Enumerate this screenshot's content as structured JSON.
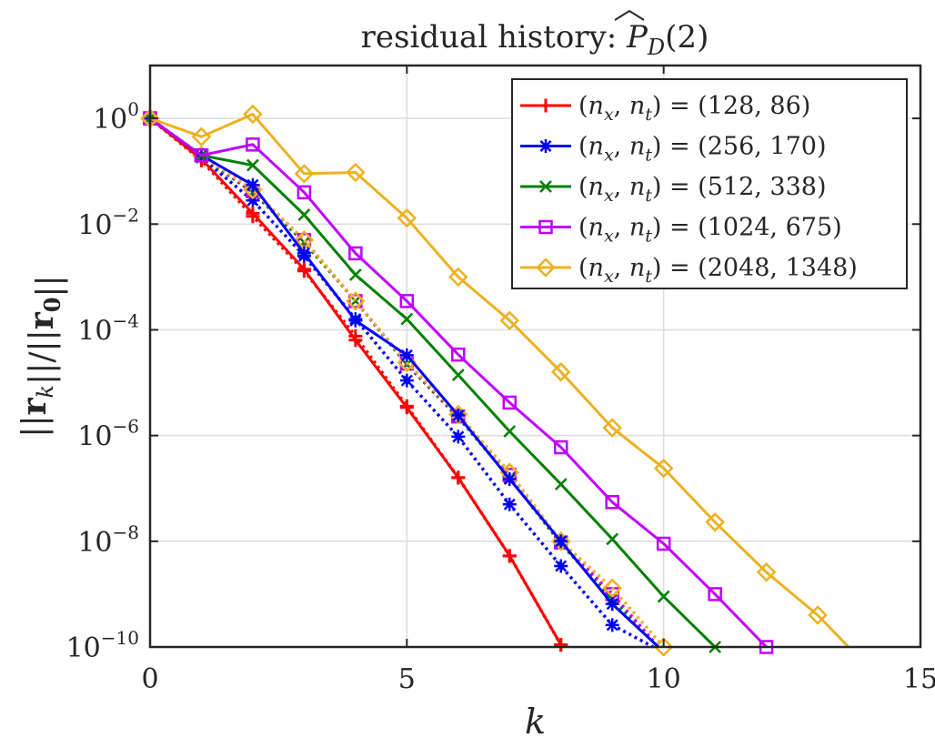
{
  "chart_data": {
    "type": "line",
    "title": "residual history: P̂_D(2)",
    "title_parts": {
      "prefix": "residual history: ",
      "symbol": "P",
      "subscript": "D",
      "suffix": "(2)"
    },
    "xlabel": "k",
    "ylabel": "||r_k|| / ||r_0||",
    "xlim": [
      0,
      15
    ],
    "ylim": [
      1e-10,
      10
    ],
    "yscale": "log",
    "grid": true,
    "legend_position": "top-right",
    "x_ticks": [
      0,
      5,
      10,
      15
    ],
    "y_ticks": [
      {
        "base": "10",
        "exp": "0",
        "value": 1
      },
      {
        "base": "10",
        "exp": "−2",
        "value": 0.01
      },
      {
        "base": "10",
        "exp": "−4",
        "value": 0.0001
      },
      {
        "base": "10",
        "exp": "−6",
        "value": 1e-06
      },
      {
        "base": "10",
        "exp": "−8",
        "value": 1e-08
      },
      {
        "base": "10",
        "exp": "−10",
        "value": 1e-10
      }
    ],
    "series": [
      {
        "name": "(n_x, n_t) = (128, 86)",
        "legend_value": "(128, 86)",
        "color": "#ff0000",
        "marker": "plus",
        "style": "solid",
        "x": [
          0,
          1,
          2,
          3,
          4,
          5,
          6,
          7,
          8
        ],
        "y": [
          1,
          0.17,
          0.016,
          0.0014,
          6.4e-05,
          3.4e-06,
          1.6e-07,
          5.3e-09,
          1.1e-10
        ]
      },
      {
        "name": "(n_x, n_t) = (256, 170)",
        "legend_value": "(256, 170)",
        "color": "#0000ff",
        "marker": "asterisk",
        "style": "solid",
        "x": [
          0,
          1,
          2,
          3,
          4,
          5,
          6,
          7,
          8,
          9,
          9.9
        ],
        "y": [
          1,
          0.2,
          0.055,
          0.0028,
          0.00015,
          3.3e-05,
          2.4e-06,
          1.5e-07,
          1e-08,
          6.5e-10,
          1e-10
        ]
      },
      {
        "name": "(n_x, n_t) = (512, 338)",
        "legend_value": "(512, 338)",
        "color": "#008000",
        "marker": "x",
        "style": "solid",
        "x": [
          0,
          1,
          2,
          3,
          4,
          5,
          6,
          7,
          8,
          9,
          10,
          11
        ],
        "y": [
          1,
          0.2,
          0.13,
          0.015,
          0.0011,
          0.00016,
          1.4e-05,
          1.2e-06,
          1.2e-07,
          1.1e-08,
          9e-10,
          1e-10
        ]
      },
      {
        "name": "(n_x, n_t) = (1024, 675)",
        "legend_value": "(1024, 675)",
        "color": "#bf00ff",
        "marker": "square",
        "style": "solid",
        "x": [
          0,
          1,
          2,
          3,
          4,
          5,
          6,
          7,
          8,
          9,
          10,
          11,
          12
        ],
        "y": [
          1,
          0.2,
          0.32,
          0.04,
          0.0028,
          0.00035,
          3.4e-05,
          4.2e-06,
          6e-07,
          5.5e-08,
          9e-09,
          1e-09,
          1e-10
        ]
      },
      {
        "name": "(n_x, n_t) = (2048, 1348)",
        "legend_value": "(2048, 1348)",
        "color": "#edb120",
        "marker": "diamond",
        "style": "solid",
        "x": [
          0,
          1,
          2,
          3,
          4,
          5,
          6,
          7,
          8,
          9,
          10,
          11,
          12,
          13,
          13.6
        ],
        "y": [
          1,
          0.45,
          1.2,
          0.09,
          0.095,
          0.013,
          0.001,
          0.00015,
          1.6e-05,
          1.4e-06,
          2.4e-07,
          2.3e-08,
          2.6e-09,
          4e-10,
          1e-10
        ]
      },
      {
        "name": "",
        "color": "#ff0000",
        "marker": "plus",
        "style": "dotted",
        "x": [
          0,
          1,
          2,
          3,
          4,
          5,
          6,
          7,
          8
        ],
        "y": [
          1,
          0.16,
          0.014,
          0.0013,
          7.6e-05,
          3.6e-06,
          1.6e-07,
          5.3e-09,
          1.1e-10
        ]
      },
      {
        "name": "",
        "color": "#0000ff",
        "marker": "asterisk",
        "style": "dotted",
        "x": [
          0,
          1,
          2,
          3,
          4,
          5,
          6,
          7,
          8,
          9,
          9.8
        ],
        "y": [
          1,
          0.18,
          0.028,
          0.0025,
          0.00016,
          1.1e-05,
          9.5e-07,
          5e-08,
          3.4e-09,
          2.6e-10,
          1e-10
        ]
      },
      {
        "name": "",
        "color": "#008000",
        "marker": "x",
        "style": "dotted",
        "x": [
          0,
          1,
          2,
          3,
          4,
          5,
          6,
          7,
          8,
          9,
          9.9
        ],
        "y": [
          1,
          0.19,
          0.04,
          0.0045,
          0.00035,
          2.2e-05,
          2.2e-06,
          1.6e-07,
          9e-09,
          8e-10,
          1e-10
        ]
      },
      {
        "name": "",
        "color": "#bf00ff",
        "marker": "square",
        "style": "dotted",
        "x": [
          0,
          1,
          2,
          3,
          4,
          5,
          6,
          7,
          8,
          9,
          9.9
        ],
        "y": [
          1,
          0.2,
          0.042,
          0.005,
          0.00035,
          2.3e-05,
          2.3e-06,
          1.8e-07,
          9.5e-09,
          1e-09,
          1e-10
        ]
      },
      {
        "name": "",
        "color": "#edb120",
        "marker": "diamond",
        "style": "dotted",
        "x": [
          0,
          1,
          2,
          3,
          4,
          5,
          6,
          7,
          8,
          9,
          10
        ],
        "y": [
          1,
          0.2,
          0.045,
          0.005,
          0.00035,
          2.4e-05,
          2.5e-06,
          2e-07,
          1e-08,
          1.3e-09,
          1e-10
        ]
      }
    ]
  }
}
